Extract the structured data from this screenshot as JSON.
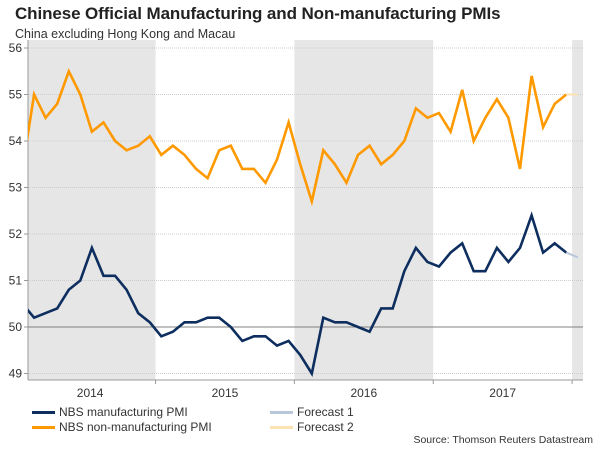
{
  "header": {
    "title": "Chinese Official Manufacturing and Non-manufacturing PMIs",
    "subtitle": "China excluding Hong Kong and Macau"
  },
  "source": "Source: Thomson Reuters Datastream",
  "colors": {
    "manufacturing": "#0d2e5e",
    "non_manufacturing": "#ff9900",
    "forecast1": "#b8c7d9",
    "forecast2": "#fde3b3",
    "shade": "#e6e6e6",
    "grid": "#cccccc",
    "baseline": "#808080"
  },
  "chart_data": {
    "type": "line",
    "title": "Chinese Official Manufacturing and Non-manufacturing PMIs",
    "subtitle": "China excluding Hong Kong and Macau",
    "xlabel": "",
    "ylabel": "",
    "ylim": [
      48.9,
      56
    ],
    "yticks": [
      49,
      50,
      51,
      52,
      53,
      54,
      55,
      56
    ],
    "x_start": "2014-01",
    "x_frequency": "monthly",
    "xtick_labels": [
      "2014",
      "2015",
      "2016",
      "2017"
    ],
    "shaded_years": [
      "2014",
      "2016",
      "2018"
    ],
    "reference_line": 50,
    "grid": true,
    "legend_position": "bottom",
    "series": [
      {
        "name": "NBS manufacturing PMI",
        "color": "#0d2e5e",
        "values": [
          50.5,
          50.2,
          50.3,
          50.4,
          50.8,
          51.0,
          51.7,
          51.1,
          51.1,
          50.8,
          50.3,
          50.1,
          49.8,
          49.9,
          50.1,
          50.1,
          50.2,
          50.2,
          50.0,
          49.7,
          49.8,
          49.8,
          49.6,
          49.7,
          49.4,
          49.0,
          50.2,
          50.1,
          50.1,
          50.0,
          49.9,
          50.4,
          50.4,
          51.2,
          51.7,
          51.4,
          51.3,
          51.6,
          51.8,
          51.2,
          51.2,
          51.7,
          51.4,
          51.7,
          52.4,
          51.6,
          51.8,
          51.6
        ]
      },
      {
        "name": "NBS non-manufacturing PMI",
        "color": "#ff9900",
        "values": [
          53.4,
          55.0,
          54.5,
          54.8,
          55.5,
          55.0,
          54.2,
          54.4,
          54.0,
          53.8,
          53.9,
          54.1,
          53.7,
          53.9,
          53.7,
          53.4,
          53.2,
          53.8,
          53.9,
          53.4,
          53.4,
          53.1,
          53.6,
          54.4,
          53.5,
          52.7,
          53.8,
          53.5,
          53.1,
          53.7,
          53.9,
          53.5,
          53.7,
          54.0,
          54.7,
          54.5,
          54.6,
          54.2,
          55.1,
          54.0,
          54.5,
          54.9,
          54.5,
          53.4,
          55.4,
          54.3,
          54.8,
          55.0
        ]
      },
      {
        "name": "Forecast 1",
        "color": "#b8c7d9",
        "start_index": 47,
        "values": [
          51.6,
          51.5
        ]
      },
      {
        "name": "Forecast 2",
        "color": "#fde3b3",
        "start_index": 47,
        "values": [
          55.0,
          55.0
        ]
      }
    ]
  },
  "legend": [
    {
      "label": "NBS manufacturing PMI",
      "color": "#0d2e5e"
    },
    {
      "label": "NBS non-manufacturing PMI",
      "color": "#ff9900"
    },
    {
      "label": "Forecast 1",
      "color": "#b8c7d9"
    },
    {
      "label": "Forecast 2",
      "color": "#fde3b3"
    }
  ]
}
